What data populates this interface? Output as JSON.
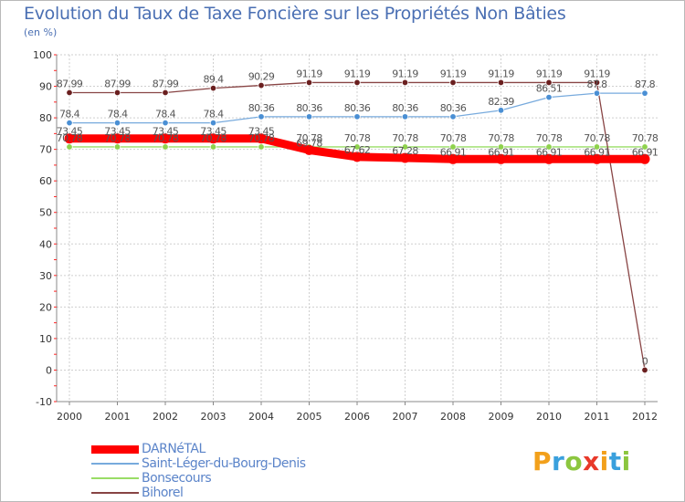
{
  "header": {
    "title": "Evolution du Taux de Taxe Foncière sur les Propriétés Non Bâties",
    "unit": "(en %)"
  },
  "brand": {
    "letters": [
      "P",
      "r",
      "o",
      "x",
      "i",
      "t",
      "i"
    ],
    "colors": [
      "#f2a01b",
      "#3aa0dd",
      "#8cc63f",
      "#e8392a",
      "#f2a01b",
      "#3aa0dd",
      "#8cc63f"
    ]
  },
  "chart_data": {
    "type": "line",
    "title": "Evolution du Taux de Taxe Foncière sur les Propriétés Non Bâties",
    "ylabel": "(en %)",
    "xlabel": "",
    "x": [
      "2000",
      "2001",
      "2002",
      "2003",
      "2004",
      "2005",
      "2006",
      "2007",
      "2008",
      "2009",
      "2010",
      "2011",
      "2012"
    ],
    "ylim": [
      -10,
      100
    ],
    "yticks": [
      -10,
      0,
      10,
      20,
      30,
      40,
      50,
      60,
      70,
      80,
      90,
      100
    ],
    "grid": true,
    "series": [
      {
        "name": "DARNéTAL",
        "color": "#ff0000",
        "values": [
          73.45,
          73.45,
          73.45,
          73.45,
          73.45,
          69.78,
          67.62,
          67.28,
          66.91,
          66.91,
          66.91,
          66.91,
          66.91
        ],
        "labels": [
          "73.45",
          "73.45",
          "73.45",
          "73.45",
          "73.45",
          "69.78",
          "67.62",
          "67.28",
          "66.91",
          "66.91",
          "66.91",
          "66.91",
          "66.91"
        ]
      },
      {
        "name": "Saint-Léger-du-Bourg-Denis",
        "color": "#77aadd",
        "values": [
          78.4,
          78.4,
          78.4,
          78.4,
          80.36,
          80.36,
          80.36,
          80.36,
          80.36,
          82.39,
          86.51,
          87.8,
          87.8
        ],
        "labels": [
          "78.4",
          "78.4",
          "78.4",
          "78.4",
          "80.36",
          "80.36",
          "80.36",
          "80.36",
          "80.36",
          "82.39",
          "86.51",
          "87.8",
          "87.8"
        ]
      },
      {
        "name": "Bonsecours",
        "color": "#99dd66",
        "values": [
          70.78,
          70.78,
          70.78,
          70.78,
          70.78,
          70.78,
          70.78,
          70.78,
          70.78,
          70.78,
          70.78,
          70.78,
          70.78
        ],
        "labels": [
          "70.78",
          "70.78",
          "70.78",
          "70.78",
          "70.78",
          "70.78",
          "70.78",
          "70.78",
          "70.78",
          "70.78",
          "70.78",
          "70.78",
          "70.78"
        ]
      },
      {
        "name": "Bihorel",
        "color": "#884444",
        "values": [
          87.99,
          87.99,
          87.99,
          89.4,
          90.29,
          91.19,
          91.19,
          91.19,
          91.19,
          91.19,
          91.19,
          91.19,
          0
        ],
        "labels": [
          "87.99",
          "87.99",
          "87.99",
          "89.4",
          "90.29",
          "91.19",
          "91.19",
          "91.19",
          "91.19",
          "91.19",
          "91.19",
          "91.19",
          "0"
        ]
      }
    ]
  }
}
